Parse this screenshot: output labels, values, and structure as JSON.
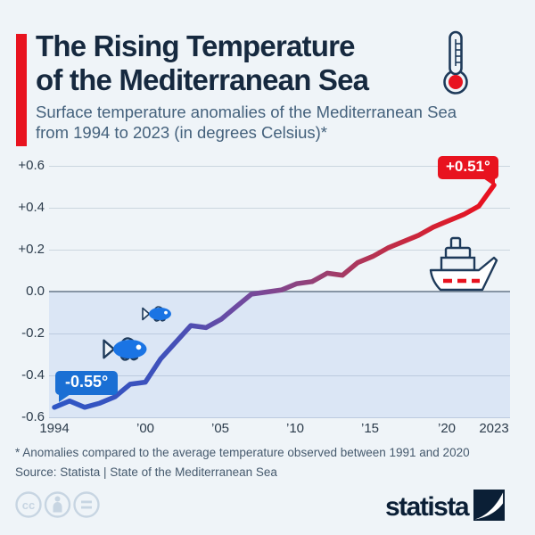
{
  "header": {
    "title_line1": "The Rising Temperature",
    "title_line2": "of the Mediterranean Sea",
    "subtitle_line1": "Surface temperature anomalies of the Mediterranean Sea",
    "subtitle_line2": "from 1994 to 2023 (in degrees Celsius)*",
    "accent_color": "#e8131f",
    "title_color": "#16293f"
  },
  "chart_data": {
    "type": "line",
    "title": "Surface temperature anomalies of the Mediterranean Sea 1994–2023 (°C)",
    "x": [
      1994,
      1995,
      1996,
      1997,
      1998,
      1999,
      2000,
      2001,
      2002,
      2003,
      2004,
      2005,
      2006,
      2007,
      2008,
      2009,
      2010,
      2011,
      2012,
      2013,
      2014,
      2015,
      2016,
      2017,
      2018,
      2019,
      2020,
      2021,
      2022,
      2023
    ],
    "values": [
      -0.55,
      -0.52,
      -0.55,
      -0.53,
      -0.5,
      -0.44,
      -0.43,
      -0.32,
      -0.24,
      -0.16,
      -0.17,
      -0.13,
      -0.07,
      -0.01,
      0.0,
      0.01,
      0.04,
      0.05,
      0.09,
      0.08,
      0.14,
      0.17,
      0.21,
      0.24,
      0.27,
      0.31,
      0.34,
      0.37,
      0.41,
      0.51
    ],
    "xlim": [
      1994,
      2023
    ],
    "ylim": [
      -0.6,
      0.6
    ],
    "grid": true,
    "legend": "none",
    "ytick_labels": [
      "+0.6",
      "+0.4",
      "+0.2",
      "0.0",
      "-0.2",
      "-0.4",
      "-0.6"
    ],
    "xtick_labels": [
      "1994",
      "’00",
      "’05",
      "’10",
      "’15",
      "’20",
      "2023"
    ],
    "xtick_years": [
      1994,
      2000,
      2005,
      2010,
      2015,
      2020,
      2023
    ],
    "start_label": "-0.55°",
    "end_label": "+0.51°",
    "start_badge_color": "#1a6fd4",
    "end_badge_color": "#e8131f",
    "line_gradient_start": "#2e56c5",
    "line_gradient_mid": "#80468f",
    "line_gradient_end": "#ea0f1e",
    "below_zero_fill": "#dbe6f5"
  },
  "footer": {
    "footnote": "* Anomalies compared to the average temperature observed between 1991 and 2020",
    "source": "Source: Statista | State of the Mediterranean Sea",
    "cc_glyph": "cc",
    "logo_text": "statista"
  }
}
